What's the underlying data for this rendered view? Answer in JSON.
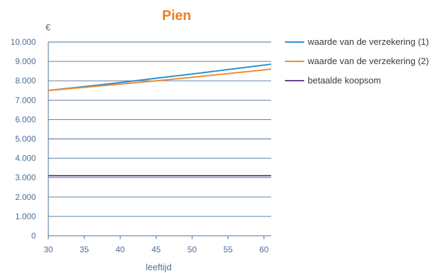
{
  "chart_data": {
    "type": "line",
    "title": "Pien",
    "ylabel": "€",
    "xlabel": "leeftijd",
    "x": [
      30,
      35,
      40,
      45,
      50,
      55,
      60
    ],
    "x_ticks": [
      "30",
      "35",
      "40",
      "45",
      "50",
      "55",
      "60"
    ],
    "xlim": [
      30,
      61
    ],
    "ylim": [
      0,
      10000
    ],
    "y_ticks": [
      "0",
      "1.000",
      "2.000",
      "3.000",
      "4.000",
      "5.000",
      "6.000",
      "7.000",
      "8.000",
      "9.000",
      "10.000"
    ],
    "y_tick_values": [
      0,
      1000,
      2000,
      3000,
      4000,
      5000,
      6000,
      7000,
      8000,
      9000,
      10000
    ],
    "grid": "horizontal",
    "legend_position": "right",
    "series": [
      {
        "name": "waarde van de verzekering (1)",
        "color": "#2a8fcf",
        "x": [
          30,
          35,
          40,
          45,
          50,
          55,
          60,
          61
        ],
        "values": [
          7500,
          7700,
          7910,
          8130,
          8350,
          8580,
          8810,
          8860
        ]
      },
      {
        "name": "waarde van de verzekering (2)",
        "color": "#ef8a36",
        "x": [
          30,
          35,
          40,
          45,
          50,
          55,
          60,
          61
        ],
        "values": [
          7500,
          7660,
          7830,
          8000,
          8180,
          8370,
          8560,
          8610
        ]
      },
      {
        "name": "betaalde koopsom",
        "color": "#6b3d8f",
        "x": [
          30,
          61
        ],
        "values": [
          3100,
          3100
        ]
      }
    ],
    "colors": {
      "title": "#ef7d22",
      "axis_text": "#4a6f96",
      "grid": "#4a6f96",
      "legend_text": "#3a3a3a"
    }
  }
}
